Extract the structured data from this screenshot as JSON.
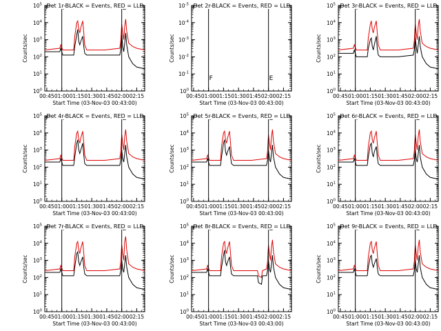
{
  "colors": {
    "events": "#000000",
    "lld": "#dd0000",
    "axis": "#000000"
  },
  "common": {
    "xlabel": "Start Time (03-Nov-03 00:43:00)",
    "ylabel": "Counts/sec",
    "xtick_labels": [
      "00:45",
      "01:00",
      "01:15",
      "01:30",
      "01:45",
      "02:00",
      "02:15"
    ],
    "xtick_minutes": [
      2,
      17,
      32,
      47,
      62,
      77,
      92
    ],
    "xlim_minutes": [
      0,
      100
    ],
    "ytick_exponents": [
      0,
      1,
      2,
      3,
      4,
      5
    ],
    "ylim_log10": [
      0,
      5
    ],
    "markers": [
      "F",
      "E"
    ],
    "marker_minutes": [
      17,
      77
    ]
  },
  "chart_data": [
    {
      "type": "line",
      "title": "Det 1r-BLACK = Events, RED = LLD",
      "yscale": "log",
      "series": [
        {
          "name": "Events",
          "x": [
            0,
            15,
            16,
            18,
            29,
            30,
            32,
            33,
            34,
            35,
            36,
            38,
            39,
            40,
            42,
            60,
            75,
            76,
            77,
            78,
            79,
            80,
            81,
            82,
            84,
            88,
            92,
            100
          ],
          "y_log10": [
            2.3,
            2.3,
            2.5,
            2.1,
            2.1,
            2.6,
            3.3,
            3.6,
            2.9,
            2.7,
            2.9,
            3.2,
            2.6,
            2.2,
            2.1,
            2.1,
            2.1,
            2.4,
            3.3,
            2.6,
            2.3,
            2.8,
            3.4,
            2.7,
            2.0,
            1.6,
            1.4,
            1.3
          ]
        },
        {
          "name": "LLD",
          "x": [
            0,
            15,
            16,
            18,
            29,
            30,
            32,
            33,
            34,
            35,
            36,
            38,
            39,
            40,
            42,
            60,
            75,
            76,
            77,
            78,
            79,
            80,
            81,
            82,
            84,
            88,
            92,
            100
          ],
          "y_log10": [
            2.4,
            2.5,
            2.7,
            2.4,
            2.4,
            3.2,
            4.0,
            4.1,
            3.6,
            3.4,
            3.7,
            4.1,
            3.4,
            2.7,
            2.4,
            2.4,
            2.5,
            2.9,
            3.9,
            3.4,
            3.0,
            3.8,
            4.2,
            3.5,
            2.8,
            2.6,
            2.5,
            2.4
          ]
        }
      ]
    },
    {
      "type": "line",
      "title": "Det 2r-BLACK = Events, RED = LLD",
      "yscale": "log",
      "ylabel": "Counts/sec",
      "ytick_exponents": [
        0,
        -1,
        -2,
        -3,
        -4,
        -5
      ],
      "series": []
    },
    {
      "type": "line",
      "title": "Det 3r-BLACK = Events, RED = LLD",
      "yscale": "log",
      "series": [
        {
          "name": "Events",
          "x": [
            0,
            15,
            16,
            18,
            29,
            30,
            32,
            33,
            34,
            35,
            36,
            38,
            39,
            40,
            42,
            60,
            75,
            76,
            77,
            78,
            79,
            80,
            81,
            82,
            84,
            88,
            92,
            100
          ],
          "y_log10": [
            2.2,
            2.2,
            2.4,
            2.0,
            2.0,
            2.5,
            3.0,
            3.1,
            2.6,
            2.4,
            2.7,
            3.2,
            2.5,
            2.1,
            2.0,
            2.0,
            2.1,
            2.4,
            3.1,
            2.6,
            2.2,
            2.7,
            3.2,
            2.6,
            2.0,
            1.6,
            1.4,
            1.3
          ]
        },
        {
          "name": "LLD",
          "x": [
            0,
            15,
            16,
            18,
            29,
            30,
            32,
            33,
            34,
            35,
            36,
            38,
            39,
            40,
            42,
            60,
            75,
            76,
            77,
            78,
            79,
            80,
            81,
            82,
            84,
            88,
            92,
            100
          ],
          "y_log10": [
            2.4,
            2.5,
            2.7,
            2.4,
            2.4,
            3.1,
            3.9,
            4.1,
            3.6,
            3.4,
            3.7,
            4.1,
            3.4,
            2.7,
            2.4,
            2.4,
            2.5,
            2.9,
            3.9,
            3.4,
            3.0,
            3.8,
            4.2,
            3.5,
            2.8,
            2.6,
            2.5,
            2.4
          ]
        }
      ]
    },
    {
      "type": "line",
      "title": "Det 4r-BLACK = Events, RED = LLD",
      "yscale": "log",
      "series": [
        {
          "name": "Events",
          "x": [
            0,
            15,
            16,
            18,
            29,
            30,
            32,
            33,
            34,
            35,
            36,
            38,
            39,
            40,
            42,
            60,
            75,
            76,
            77,
            78,
            79,
            80,
            81,
            82,
            84,
            88,
            92,
            100
          ],
          "y_log10": [
            2.3,
            2.3,
            2.5,
            2.1,
            2.1,
            2.6,
            3.4,
            3.6,
            3.0,
            2.8,
            3.0,
            3.4,
            2.7,
            2.2,
            2.1,
            2.1,
            2.1,
            2.4,
            3.0,
            2.5,
            2.3,
            2.8,
            3.3,
            2.6,
            2.0,
            1.6,
            1.4,
            1.3
          ]
        },
        {
          "name": "LLD",
          "x": [
            0,
            15,
            16,
            18,
            29,
            30,
            32,
            33,
            34,
            35,
            36,
            38,
            39,
            40,
            42,
            60,
            75,
            76,
            77,
            78,
            79,
            80,
            81,
            82,
            84,
            88,
            92,
            100
          ],
          "y_log10": [
            2.4,
            2.5,
            2.7,
            2.4,
            2.4,
            3.2,
            4.0,
            4.1,
            3.6,
            3.4,
            3.7,
            4.1,
            3.4,
            2.7,
            2.4,
            2.4,
            2.5,
            2.9,
            3.9,
            3.4,
            3.0,
            3.8,
            4.2,
            3.5,
            2.8,
            2.6,
            2.5,
            2.4
          ]
        }
      ]
    },
    {
      "type": "line",
      "title": "Det 5r-BLACK = Events, RED = LLD",
      "yscale": "log",
      "series": [
        {
          "name": "Events",
          "x": [
            0,
            15,
            16,
            18,
            29,
            30,
            32,
            33,
            34,
            35,
            36,
            38,
            39,
            40,
            42,
            60,
            75,
            76,
            77,
            78,
            79,
            80,
            81,
            82,
            84,
            88,
            92,
            100
          ],
          "y_log10": [
            2.3,
            2.3,
            2.5,
            2.1,
            2.1,
            2.6,
            3.4,
            3.6,
            2.9,
            2.7,
            2.9,
            3.2,
            2.6,
            2.2,
            2.1,
            2.1,
            2.1,
            2.4,
            3.0,
            2.5,
            2.3,
            2.8,
            3.3,
            2.6,
            2.0,
            1.6,
            1.4,
            1.3
          ]
        },
        {
          "name": "LLD",
          "x": [
            0,
            15,
            16,
            18,
            29,
            30,
            32,
            33,
            34,
            35,
            36,
            38,
            39,
            40,
            42,
            60,
            75,
            76,
            77,
            78,
            79,
            80,
            81,
            82,
            84,
            88,
            92,
            100
          ],
          "y_log10": [
            2.4,
            2.5,
            2.7,
            2.4,
            2.4,
            3.2,
            4.0,
            4.1,
            3.6,
            3.4,
            3.7,
            4.1,
            3.4,
            2.7,
            2.4,
            2.4,
            2.5,
            2.9,
            3.9,
            3.4,
            3.0,
            3.8,
            4.2,
            3.5,
            2.8,
            2.6,
            2.5,
            2.4
          ]
        }
      ]
    },
    {
      "type": "line",
      "title": "Det 6r-BLACK = Events, RED = LLD",
      "yscale": "log",
      "series": [
        {
          "name": "Events",
          "x": [
            0,
            15,
            16,
            18,
            29,
            30,
            32,
            33,
            34,
            35,
            36,
            38,
            39,
            40,
            42,
            60,
            75,
            76,
            77,
            78,
            79,
            80,
            81,
            82,
            84,
            88,
            92,
            100
          ],
          "y_log10": [
            2.3,
            2.3,
            2.5,
            2.1,
            2.1,
            2.6,
            3.3,
            3.4,
            2.8,
            2.6,
            2.9,
            3.2,
            2.6,
            2.2,
            2.1,
            2.1,
            2.1,
            2.4,
            3.0,
            2.5,
            2.3,
            2.8,
            3.3,
            2.6,
            2.0,
            1.6,
            1.4,
            1.3
          ]
        },
        {
          "name": "LLD",
          "x": [
            0,
            15,
            16,
            18,
            29,
            30,
            32,
            33,
            34,
            35,
            36,
            38,
            39,
            40,
            42,
            60,
            75,
            76,
            77,
            78,
            79,
            80,
            81,
            82,
            84,
            88,
            92,
            100
          ],
          "y_log10": [
            2.4,
            2.5,
            2.7,
            2.4,
            2.4,
            3.2,
            4.0,
            4.1,
            3.6,
            3.4,
            3.7,
            4.1,
            3.4,
            2.7,
            2.4,
            2.4,
            2.5,
            2.9,
            3.9,
            3.4,
            3.0,
            3.8,
            4.2,
            3.5,
            2.8,
            2.6,
            2.5,
            2.4
          ]
        }
      ]
    },
    {
      "type": "line",
      "title": "Det 7r-BLACK = Events, RED = LLD",
      "yscale": "log",
      "series": [
        {
          "name": "Events",
          "x": [
            0,
            15,
            16,
            18,
            29,
            30,
            32,
            33,
            34,
            35,
            36,
            38,
            39,
            40,
            42,
            60,
            75,
            76,
            77,
            78,
            79,
            80,
            81,
            82,
            84,
            88,
            92,
            100
          ],
          "y_log10": [
            2.3,
            2.3,
            2.5,
            2.1,
            2.1,
            2.6,
            3.4,
            3.5,
            2.9,
            2.7,
            2.9,
            3.2,
            2.6,
            2.2,
            2.1,
            2.1,
            2.1,
            2.4,
            3.0,
            2.5,
            2.3,
            2.8,
            3.3,
            2.6,
            2.0,
            1.6,
            1.4,
            1.3
          ]
        },
        {
          "name": "LLD",
          "x": [
            0,
            15,
            16,
            18,
            29,
            30,
            32,
            33,
            34,
            35,
            36,
            38,
            39,
            40,
            42,
            60,
            75,
            76,
            77,
            78,
            79,
            80,
            81,
            82,
            84,
            88,
            92,
            100
          ],
          "y_log10": [
            2.4,
            2.5,
            2.7,
            2.4,
            2.4,
            3.2,
            4.0,
            4.1,
            3.6,
            3.4,
            3.7,
            4.1,
            3.4,
            2.7,
            2.4,
            2.4,
            2.5,
            2.9,
            3.9,
            3.4,
            3.0,
            4.1,
            4.4,
            3.6,
            2.8,
            2.6,
            2.5,
            2.4
          ]
        }
      ]
    },
    {
      "type": "line",
      "title": "Det 8r-BLACK = Events, RED = LLD",
      "yscale": "log",
      "series": [
        {
          "name": "Events",
          "x": [
            0,
            15,
            16,
            18,
            29,
            30,
            32,
            33,
            34,
            35,
            36,
            38,
            39,
            40,
            42,
            66,
            67,
            70,
            71,
            75,
            76,
            77,
            78,
            79,
            80,
            81,
            82,
            84,
            88,
            92,
            100
          ],
          "y_log10": [
            2.3,
            2.3,
            2.5,
            2.1,
            2.1,
            2.6,
            3.3,
            3.6,
            2.9,
            2.7,
            2.9,
            3.2,
            2.6,
            2.2,
            2.1,
            2.1,
            1.7,
            1.6,
            2.1,
            2.1,
            2.4,
            3.0,
            2.5,
            2.3,
            2.8,
            3.3,
            2.6,
            2.0,
            1.6,
            1.4,
            1.3
          ]
        },
        {
          "name": "LLD",
          "x": [
            0,
            15,
            16,
            18,
            29,
            30,
            32,
            33,
            34,
            35,
            36,
            38,
            39,
            40,
            42,
            66,
            67,
            70,
            71,
            75,
            76,
            77,
            78,
            79,
            80,
            81,
            82,
            84,
            88,
            92,
            100
          ],
          "y_log10": [
            2.4,
            2.5,
            2.7,
            2.4,
            2.4,
            3.2,
            4.0,
            4.1,
            3.6,
            3.4,
            3.7,
            4.1,
            3.4,
            2.7,
            2.4,
            2.4,
            2.1,
            2.0,
            2.4,
            2.5,
            2.9,
            3.9,
            3.4,
            3.0,
            3.8,
            4.2,
            3.5,
            2.8,
            2.6,
            2.5,
            2.4
          ]
        }
      ]
    },
    {
      "type": "line",
      "title": "Det 9r-BLACK = Events, RED = LLD",
      "yscale": "log",
      "series": [
        {
          "name": "Events",
          "x": [
            0,
            15,
            16,
            18,
            29,
            30,
            32,
            33,
            34,
            35,
            36,
            38,
            39,
            40,
            42,
            60,
            75,
            76,
            77,
            78,
            79,
            80,
            81,
            82,
            84,
            88,
            92,
            100
          ],
          "y_log10": [
            2.3,
            2.3,
            2.5,
            2.1,
            2.1,
            2.6,
            3.2,
            3.3,
            2.8,
            2.6,
            2.8,
            3.1,
            2.6,
            2.2,
            2.1,
            2.1,
            2.1,
            2.4,
            3.0,
            2.5,
            2.3,
            2.8,
            3.3,
            2.6,
            2.0,
            1.6,
            1.4,
            1.3
          ]
        },
        {
          "name": "LLD",
          "x": [
            0,
            15,
            16,
            18,
            29,
            30,
            32,
            33,
            34,
            35,
            36,
            38,
            39,
            40,
            42,
            60,
            75,
            76,
            77,
            78,
            79,
            80,
            81,
            82,
            84,
            88,
            92,
            100
          ],
          "y_log10": [
            2.4,
            2.5,
            2.7,
            2.4,
            2.4,
            3.2,
            4.0,
            4.1,
            3.6,
            3.4,
            3.7,
            4.1,
            3.4,
            2.7,
            2.4,
            2.4,
            2.5,
            2.9,
            3.9,
            3.4,
            3.0,
            3.8,
            4.2,
            3.5,
            2.8,
            2.6,
            2.5,
            2.4
          ]
        }
      ]
    }
  ]
}
